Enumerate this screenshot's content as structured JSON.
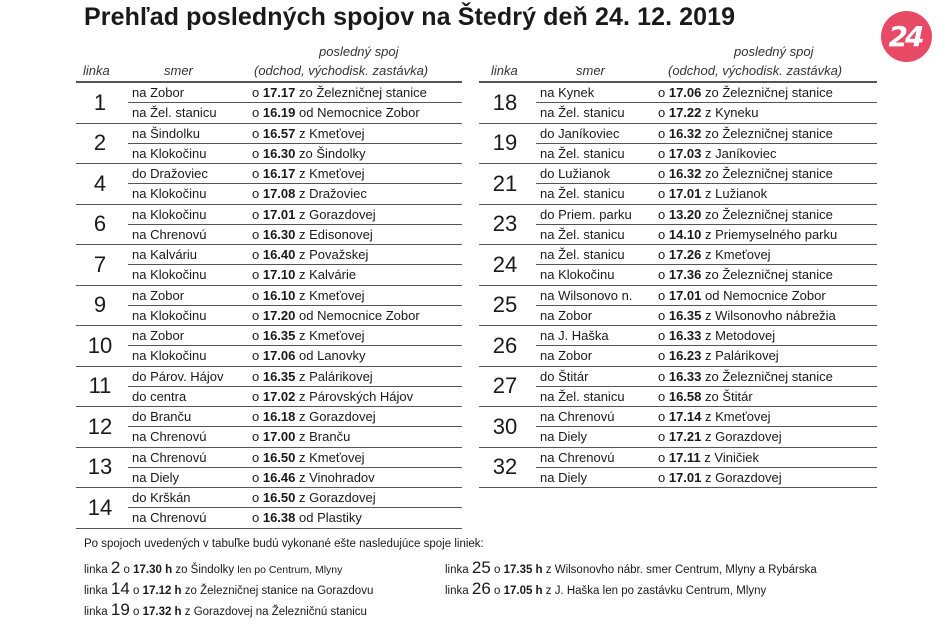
{
  "title": "Prehľad posledných spojov na Štedrý deň 24. 12. 2019",
  "logo": {
    "text": "24",
    "color": "#e84a66",
    "icon": "brand-24-logo"
  },
  "headers": {
    "linka": "linka",
    "smer": "smer",
    "spoj_line1": "posledný spoj",
    "spoj_line2": "(odchod, východisk. zastávka)"
  },
  "left_table": [
    {
      "linka": "1",
      "rows": [
        {
          "smer": "na Zobor",
          "o": "o ",
          "time": "17.17",
          "from": " zo Železničnej stanice"
        },
        {
          "smer": "na Žel. stanicu",
          "o": "o ",
          "time": "16.19",
          "from": " od Nemocnice Zobor"
        }
      ]
    },
    {
      "linka": "2",
      "rows": [
        {
          "smer": "na Šindolku",
          "o": "o ",
          "time": "16.57",
          "from": " z Kmeťovej"
        },
        {
          "smer": "na Klokočinu",
          "o": "o ",
          "time": "16.30",
          "from": " zo Šindolky"
        }
      ]
    },
    {
      "linka": "4",
      "rows": [
        {
          "smer": "do Dražoviec",
          "o": "o ",
          "time": "16.17",
          "from": " z Kmeťovej"
        },
        {
          "smer": "na Klokočinu",
          "o": "o ",
          "time": "17.08",
          "from": " z Dražoviec"
        }
      ]
    },
    {
      "linka": "6",
      "rows": [
        {
          "smer": "na Klokočinu",
          "o": "o ",
          "time": "17.01",
          "from": " z Gorazdovej"
        },
        {
          "smer": "na Chrenovú",
          "o": "o ",
          "time": "16.30",
          "from": " z Edisonovej"
        }
      ]
    },
    {
      "linka": "7",
      "rows": [
        {
          "smer": "na Kalváriu",
          "o": "o ",
          "time": "16.40",
          "from": " z Považskej"
        },
        {
          "smer": "na Klokočinu",
          "o": "o ",
          "time": "17.10",
          "from": " z Kalvárie"
        }
      ]
    },
    {
      "linka": "9",
      "rows": [
        {
          "smer": "na Zobor",
          "o": "o ",
          "time": "16.10",
          "from": " z Kmeťovej"
        },
        {
          "smer": "na Klokočinu",
          "o": "o ",
          "time": "17.20",
          "from": " od Nemocnice Zobor"
        }
      ]
    },
    {
      "linka": "10",
      "rows": [
        {
          "smer": "na Zobor",
          "o": "o ",
          "time": "16.35",
          "from": " z Kmeťovej"
        },
        {
          "smer": "na Klokočinu",
          "o": "o ",
          "time": "17.06",
          "from": " od Lanovky"
        }
      ]
    },
    {
      "linka": "11",
      "rows": [
        {
          "smer": "do Párov. Hájov",
          "o": "o ",
          "time": "16.35",
          "from": " z Palárikovej"
        },
        {
          "smer": "do centra",
          "o": "o ",
          "time": "17.02",
          "from": " z Párovských Hájov"
        }
      ]
    },
    {
      "linka": "12",
      "rows": [
        {
          "smer": "do Branču",
          "o": "o ",
          "time": "16.18",
          "from": " z Gorazdovej"
        },
        {
          "smer": "na Chrenovú",
          "o": "o ",
          "time": "17.00",
          "from": " z Branču"
        }
      ]
    },
    {
      "linka": "13",
      "rows": [
        {
          "smer": "na Chrenovú",
          "o": "o ",
          "time": "16.50",
          "from": " z Kmeťovej"
        },
        {
          "smer": "na Diely",
          "o": "o ",
          "time": "16.46",
          "from": " z Vinohradov"
        }
      ]
    },
    {
      "linka": "14",
      "rows": [
        {
          "smer": "do Krškán",
          "o": "o ",
          "time": "16.50",
          "from": " z Gorazdovej"
        },
        {
          "smer": "na Chrenovú",
          "o": "o ",
          "time": "16.38",
          "from": " od Plastiky"
        }
      ]
    }
  ],
  "right_table": [
    {
      "linka": "18",
      "rows": [
        {
          "smer": "na Kynek",
          "o": "o ",
          "time": "17.06",
          "from": " zo Železničnej stanice"
        },
        {
          "smer": "na Žel. stanicu",
          "o": "o ",
          "time": "17.22",
          "from": " z Kyneku"
        }
      ]
    },
    {
      "linka": "19",
      "rows": [
        {
          "smer": "do Janíkoviec",
          "o": "o ",
          "time": "16.32",
          "from": " zo Železničnej stanice"
        },
        {
          "smer": "na Žel. stanicu",
          "o": "o ",
          "time": "17.03",
          "from": " z Janíkoviec"
        }
      ]
    },
    {
      "linka": "21",
      "rows": [
        {
          "smer": "do Lužianok",
          "o": "o ",
          "time": "16.32",
          "from": " zo Železničnej stanice"
        },
        {
          "smer": "na Žel. stanicu",
          "o": "o ",
          "time": "17.01",
          "from": " z Lužianok"
        }
      ]
    },
    {
      "linka": "23",
      "rows": [
        {
          "smer": "do Priem. parku",
          "o": "o ",
          "time": "13.20",
          "from": " zo Železničnej stanice"
        },
        {
          "smer": "na Žel. stanicu",
          "o": "o ",
          "time": "14.10",
          "from": " z Priemyselného parku"
        }
      ]
    },
    {
      "linka": "24",
      "rows": [
        {
          "smer": "na Žel. stanicu",
          "o": "o ",
          "time": "17.26",
          "from": " z Kmeťovej"
        },
        {
          "smer": "na Klokočinu",
          "o": "o ",
          "time": "17.36",
          "from": " zo Železničnej stanice"
        }
      ]
    },
    {
      "linka": "25",
      "rows": [
        {
          "smer": "na Wilsonovo n.",
          "o": "o ",
          "time": "17.01",
          "from": " od Nemocnice Zobor"
        },
        {
          "smer": "na Zobor",
          "o": "o ",
          "time": "16.35",
          "from": " z Wilsonovho nábrežia"
        }
      ]
    },
    {
      "linka": "26",
      "rows": [
        {
          "smer": "na J. Haška",
          "o": "o ",
          "time": "16.33",
          "from": " z Metodovej"
        },
        {
          "smer": "na Zobor",
          "o": "o ",
          "time": "16.23",
          "from": " z Palárikovej"
        }
      ]
    },
    {
      "linka": "27",
      "rows": [
        {
          "smer": "do Štitár",
          "o": "o ",
          "time": "16.33",
          "from": " zo Železničnej stanice"
        },
        {
          "smer": "na Žel. stanicu",
          "o": "o ",
          "time": "16.58",
          "from": " zo Štitár"
        }
      ]
    },
    {
      "linka": "30",
      "rows": [
        {
          "smer": "na Chrenovú",
          "o": "o ",
          "time": "17.14",
          "from": " z Kmeťovej"
        },
        {
          "smer": "na Diely",
          "o": "o ",
          "time": "17.21",
          "from": " z Gorazdovej"
        }
      ]
    },
    {
      "linka": "32",
      "rows": [
        {
          "smer": "na Chrenovú",
          "o": "o ",
          "time": "17.11",
          "from": " z Viničiek"
        },
        {
          "smer": "na Diely",
          "o": "o ",
          "time": "17.01",
          "from": " z Gorazdovej"
        }
      ]
    }
  ],
  "notes": {
    "intro": "Po spojoch uvedených v tabuľke budú vykonané ešte nasledujúce spoje liniek:",
    "items": [
      {
        "prefix": "linka ",
        "num": "2",
        "o": " o ",
        "time": "17.30 h",
        "text": " zo Šindolky ",
        "small": "len po Centrum, Mlyny"
      },
      {
        "prefix": "linka ",
        "num": "14",
        "o": " o ",
        "time": "17.12 h",
        "text": " zo Železničnej stanice na Gorazdovu",
        "small": ""
      },
      {
        "prefix": "linka ",
        "num": "19",
        "o": " o ",
        "time": "17.32 h",
        "text": " z Gorazdovej na Železničnú stanicu",
        "small": ""
      },
      {
        "prefix": "linka ",
        "num": "25",
        "o": " o ",
        "time": "17.35 h",
        "text": " z Wilsonovho nábr. smer Centrum, Mlyny a Rybárska",
        "small": ""
      },
      {
        "prefix": "linka ",
        "num": "26",
        "o": " o ",
        "time": "17.05 h",
        "text": " z J. Haška len po zastávku Centrum, Mlyny",
        "small": ""
      }
    ]
  }
}
